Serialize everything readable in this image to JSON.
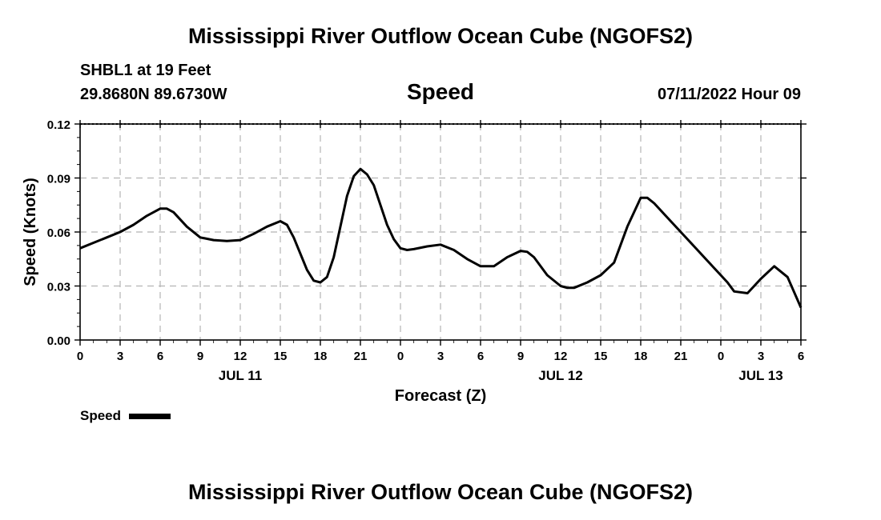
{
  "page": {
    "title": "Mississippi River Outflow Ocean Cube (NGOFS2)",
    "footer_title": "Mississippi River Outflow Ocean Cube (NGOFS2)",
    "station": "SHBL1 at 19 Feet",
    "coords": "29.8680N  89.6730W",
    "variable": "Speed",
    "datetime": "07/11/2022 Hour 09"
  },
  "chart_data": {
    "type": "line",
    "title": "Speed",
    "xlabel": "Forecast (Z)",
    "ylabel": "Speed (Knots)",
    "xlim": [
      0,
      54
    ],
    "ylim": [
      0,
      0.12
    ],
    "yticks": [
      "0.00",
      "0.03",
      "0.06",
      "0.09",
      "0.12"
    ],
    "ytick_values": [
      0,
      0.03,
      0.06,
      0.09,
      0.12
    ],
    "xtick_hours": [
      0,
      3,
      6,
      9,
      12,
      15,
      18,
      21,
      24,
      27,
      30,
      33,
      36,
      39,
      42,
      45,
      48,
      51,
      54
    ],
    "xtick_labels": [
      "0",
      "3",
      "6",
      "9",
      "12",
      "15",
      "18",
      "21",
      "0",
      "3",
      "6",
      "9",
      "12",
      "15",
      "18",
      "21",
      "0",
      "3",
      "6"
    ],
    "day_labels": [
      {
        "label": "JUL 11",
        "hour": 12
      },
      {
        "label": "JUL 12",
        "hour": 36
      },
      {
        "label": "JUL 13",
        "hour": 51
      }
    ],
    "grid": true,
    "legend": {
      "label": "Speed",
      "position": "bottom-left"
    },
    "series": [
      {
        "name": "Speed",
        "color": "#000000",
        "x": [
          0,
          1,
          2,
          3,
          4,
          5,
          6,
          6.5,
          7,
          8,
          9,
          10,
          11,
          12,
          13,
          14,
          15,
          15.5,
          16,
          17,
          17.5,
          18,
          18.5,
          19,
          20,
          20.5,
          21,
          21.5,
          22,
          23,
          23.5,
          24,
          24.5,
          25,
          26,
          27,
          28,
          29,
          30,
          31,
          32,
          33,
          33.5,
          34,
          35,
          36,
          36.5,
          37,
          38,
          39,
          40,
          41,
          42,
          42.5,
          43,
          44,
          45,
          46,
          47,
          48,
          48.5,
          49,
          50,
          51,
          52,
          53,
          54
        ],
        "y": [
          0.051,
          0.054,
          0.057,
          0.06,
          0.064,
          0.069,
          0.073,
          0.073,
          0.071,
          0.063,
          0.057,
          0.0555,
          0.055,
          0.0555,
          0.059,
          0.063,
          0.066,
          0.064,
          0.057,
          0.039,
          0.033,
          0.032,
          0.035,
          0.046,
          0.08,
          0.091,
          0.095,
          0.092,
          0.086,
          0.064,
          0.056,
          0.051,
          0.05,
          0.0505,
          0.052,
          0.053,
          0.05,
          0.045,
          0.041,
          0.041,
          0.046,
          0.0495,
          0.049,
          0.046,
          0.036,
          0.03,
          0.029,
          0.029,
          0.032,
          0.036,
          0.043,
          0.063,
          0.079,
          0.079,
          0.076,
          0.068,
          0.06,
          0.052,
          0.044,
          0.036,
          0.032,
          0.027,
          0.026,
          0.034,
          0.041,
          0.035,
          0.018
        ]
      }
    ]
  }
}
